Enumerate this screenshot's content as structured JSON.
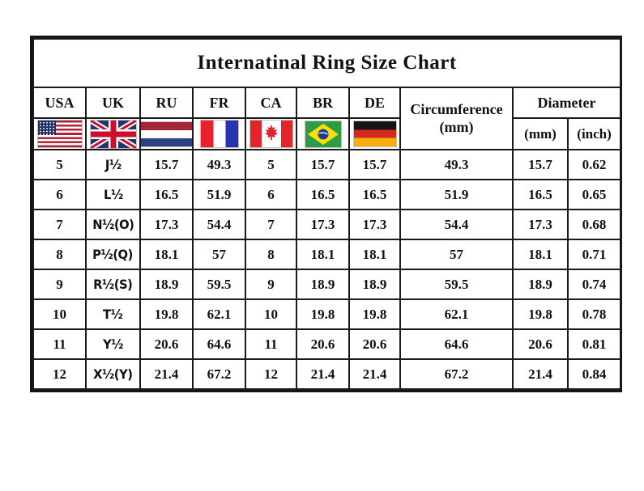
{
  "title": "Internatinal Ring Size Chart",
  "chart_data": {
    "type": "table",
    "title": "Internatinal Ring Size Chart",
    "country_columns": [
      {
        "code": "USA",
        "flag": "usa-flag-icon"
      },
      {
        "code": "UK",
        "flag": "uk-flag-icon"
      },
      {
        "code": "RU",
        "flag": "ru-flag-icon"
      },
      {
        "code": "FR",
        "flag": "fr-flag-icon"
      },
      {
        "code": "CA",
        "flag": "ca-flag-icon"
      },
      {
        "code": "BR",
        "flag": "br-flag-icon"
      },
      {
        "code": "DE",
        "flag": "de-flag-icon"
      }
    ],
    "circumference_header": {
      "line1": "Circumference",
      "line2": "(mm)"
    },
    "diameter_header": {
      "title": "Diameter",
      "sub": [
        "(mm)",
        "(inch)"
      ]
    },
    "row_fields": [
      "usa",
      "uk",
      "ru",
      "fr",
      "ca",
      "br",
      "de",
      "circumference_mm",
      "diameter_mm",
      "diameter_inch"
    ],
    "rows": [
      [
        "5",
        "J½",
        "15.7",
        "49.3",
        "5",
        "15.7",
        "15.7",
        "49.3",
        "15.7",
        "0.62"
      ],
      [
        "6",
        "L½",
        "16.5",
        "51.9",
        "6",
        "16.5",
        "16.5",
        "51.9",
        "16.5",
        "0.65"
      ],
      [
        "7",
        "N½(O)",
        "17.3",
        "54.4",
        "7",
        "17.3",
        "17.3",
        "54.4",
        "17.3",
        "0.68"
      ],
      [
        "8",
        "P½(Q)",
        "18.1",
        "57",
        "8",
        "18.1",
        "18.1",
        "57",
        "18.1",
        "0.71"
      ],
      [
        "9",
        "R½(S)",
        "18.9",
        "59.5",
        "9",
        "18.9",
        "18.9",
        "59.5",
        "18.9",
        "0.74"
      ],
      [
        "10",
        "T½",
        "19.8",
        "62.1",
        "10",
        "19.8",
        "19.8",
        "62.1",
        "19.8",
        "0.78"
      ],
      [
        "11",
        "Y½",
        "20.6",
        "64.6",
        "11",
        "20.6",
        "20.6",
        "64.6",
        "20.6",
        "0.81"
      ],
      [
        "12",
        "X½(Y)",
        "21.4",
        "67.2",
        "12",
        "21.4",
        "21.4",
        "67.2",
        "21.4",
        "0.84"
      ]
    ]
  },
  "colors": {
    "background": "#ffffff",
    "border": "#1a1a1a",
    "text": "#111111"
  }
}
